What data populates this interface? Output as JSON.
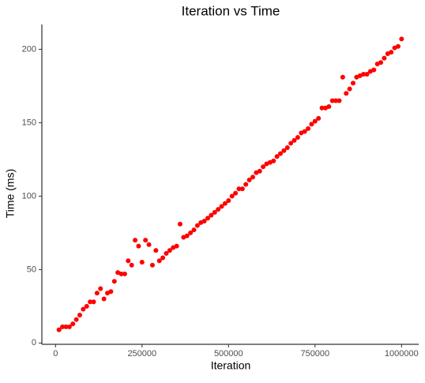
{
  "chart_data": {
    "type": "scatter",
    "title": "Iteration vs Time",
    "x_label": "Iteration",
    "y_label": "Time (ms)",
    "color": "#ff0000",
    "x": [
      10000,
      20000,
      30000,
      40000,
      50000,
      60000,
      70000,
      80000,
      90000,
      100000,
      110000,
      120000,
      130000,
      140000,
      150000,
      160000,
      170000,
      180000,
      190000,
      200000,
      210000,
      220000,
      230000,
      240000,
      250000,
      260000,
      270000,
      280000,
      290000,
      300000,
      310000,
      320000,
      330000,
      340000,
      350000,
      360000,
      370000,
      380000,
      390000,
      400000,
      410000,
      420000,
      430000,
      440000,
      450000,
      460000,
      470000,
      480000,
      490000,
      500000,
      510000,
      520000,
      530000,
      540000,
      550000,
      560000,
      570000,
      580000,
      590000,
      600000,
      610000,
      620000,
      630000,
      640000,
      650000,
      660000,
      670000,
      680000,
      690000,
      700000,
      710000,
      720000,
      730000,
      740000,
      750000,
      760000,
      770000,
      780000,
      790000,
      800000,
      810000,
      820000,
      830000,
      840000,
      850000,
      860000,
      870000,
      880000,
      890000,
      900000,
      910000,
      920000,
      930000,
      940000,
      950000,
      960000,
      970000,
      980000,
      990000,
      1000000
    ],
    "values": [
      9,
      11,
      11,
      11,
      13,
      16,
      19,
      23,
      25,
      28,
      28,
      34,
      37,
      30,
      34,
      35,
      42,
      48,
      47,
      47,
      56,
      53,
      70,
      66,
      55,
      70,
      67,
      53,
      63,
      56,
      58,
      61,
      63,
      65,
      66,
      81,
      72,
      73,
      75,
      77,
      80,
      82,
      83,
      85,
      87,
      89,
      91,
      93,
      95,
      97,
      100,
      102,
      105,
      105,
      108,
      111,
      113,
      116,
      117,
      120,
      122,
      123,
      124,
      127,
      129,
      131,
      133,
      136,
      138,
      140,
      143,
      144,
      146,
      149,
      151,
      153,
      160,
      160,
      161,
      165,
      165,
      165,
      181,
      170,
      173,
      177,
      181,
      182,
      183,
      183,
      185,
      186,
      190,
      191,
      194,
      197,
      198,
      201,
      202,
      207
    ],
    "xlim": [
      -39500,
      1049500
    ],
    "ylim": [
      -0.9,
      216.9
    ],
    "xticks": [
      0,
      250000,
      500000,
      750000,
      1000000
    ],
    "yticks": [
      0,
      50,
      100,
      150,
      200
    ],
    "grid": false
  }
}
